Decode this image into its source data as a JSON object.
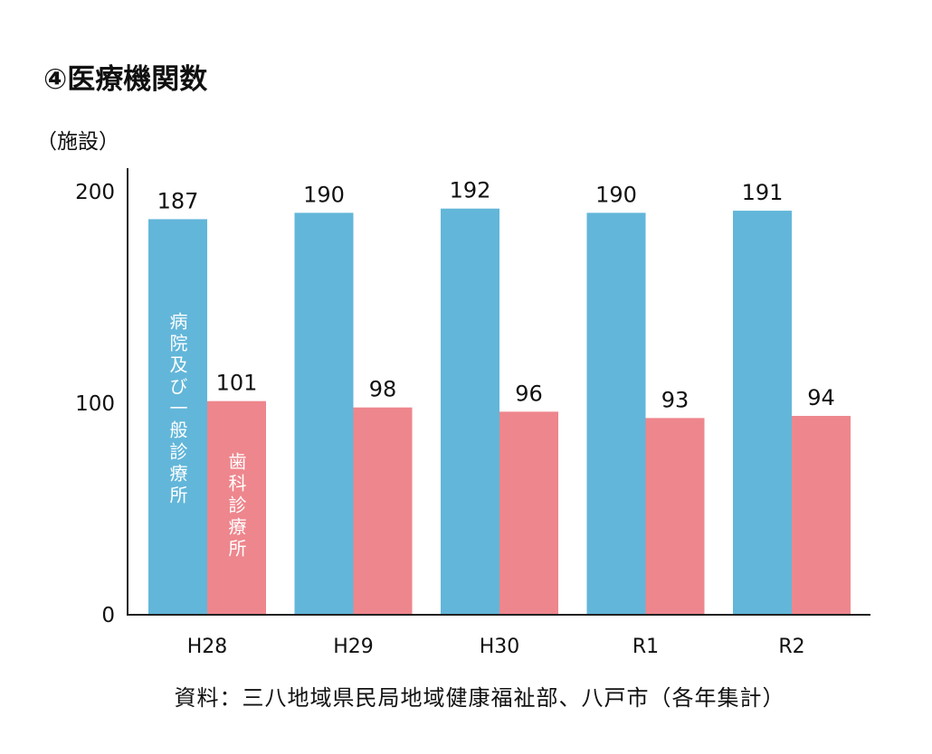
{
  "chart_data": {
    "type": "bar",
    "title": "④医療機関数",
    "ylabel": "（施設）",
    "categories": [
      "H28",
      "H29",
      "H30",
      "R1",
      "R2"
    ],
    "series": [
      {
        "name": "病院及び一般診療所",
        "values": [
          187,
          190,
          192,
          190,
          191
        ],
        "color": "#62b6d9"
      },
      {
        "name": "歯科診療所",
        "values": [
          101,
          98,
          96,
          93,
          94
        ],
        "color": "#ee868d"
      }
    ],
    "yticks": [
      0,
      100,
      200
    ],
    "ylim": [
      0,
      210
    ],
    "grid": false,
    "legend": "labels inside bars",
    "source": "資料：三八地域県民局地域健康福祉部、八戸市（各年集計）"
  }
}
